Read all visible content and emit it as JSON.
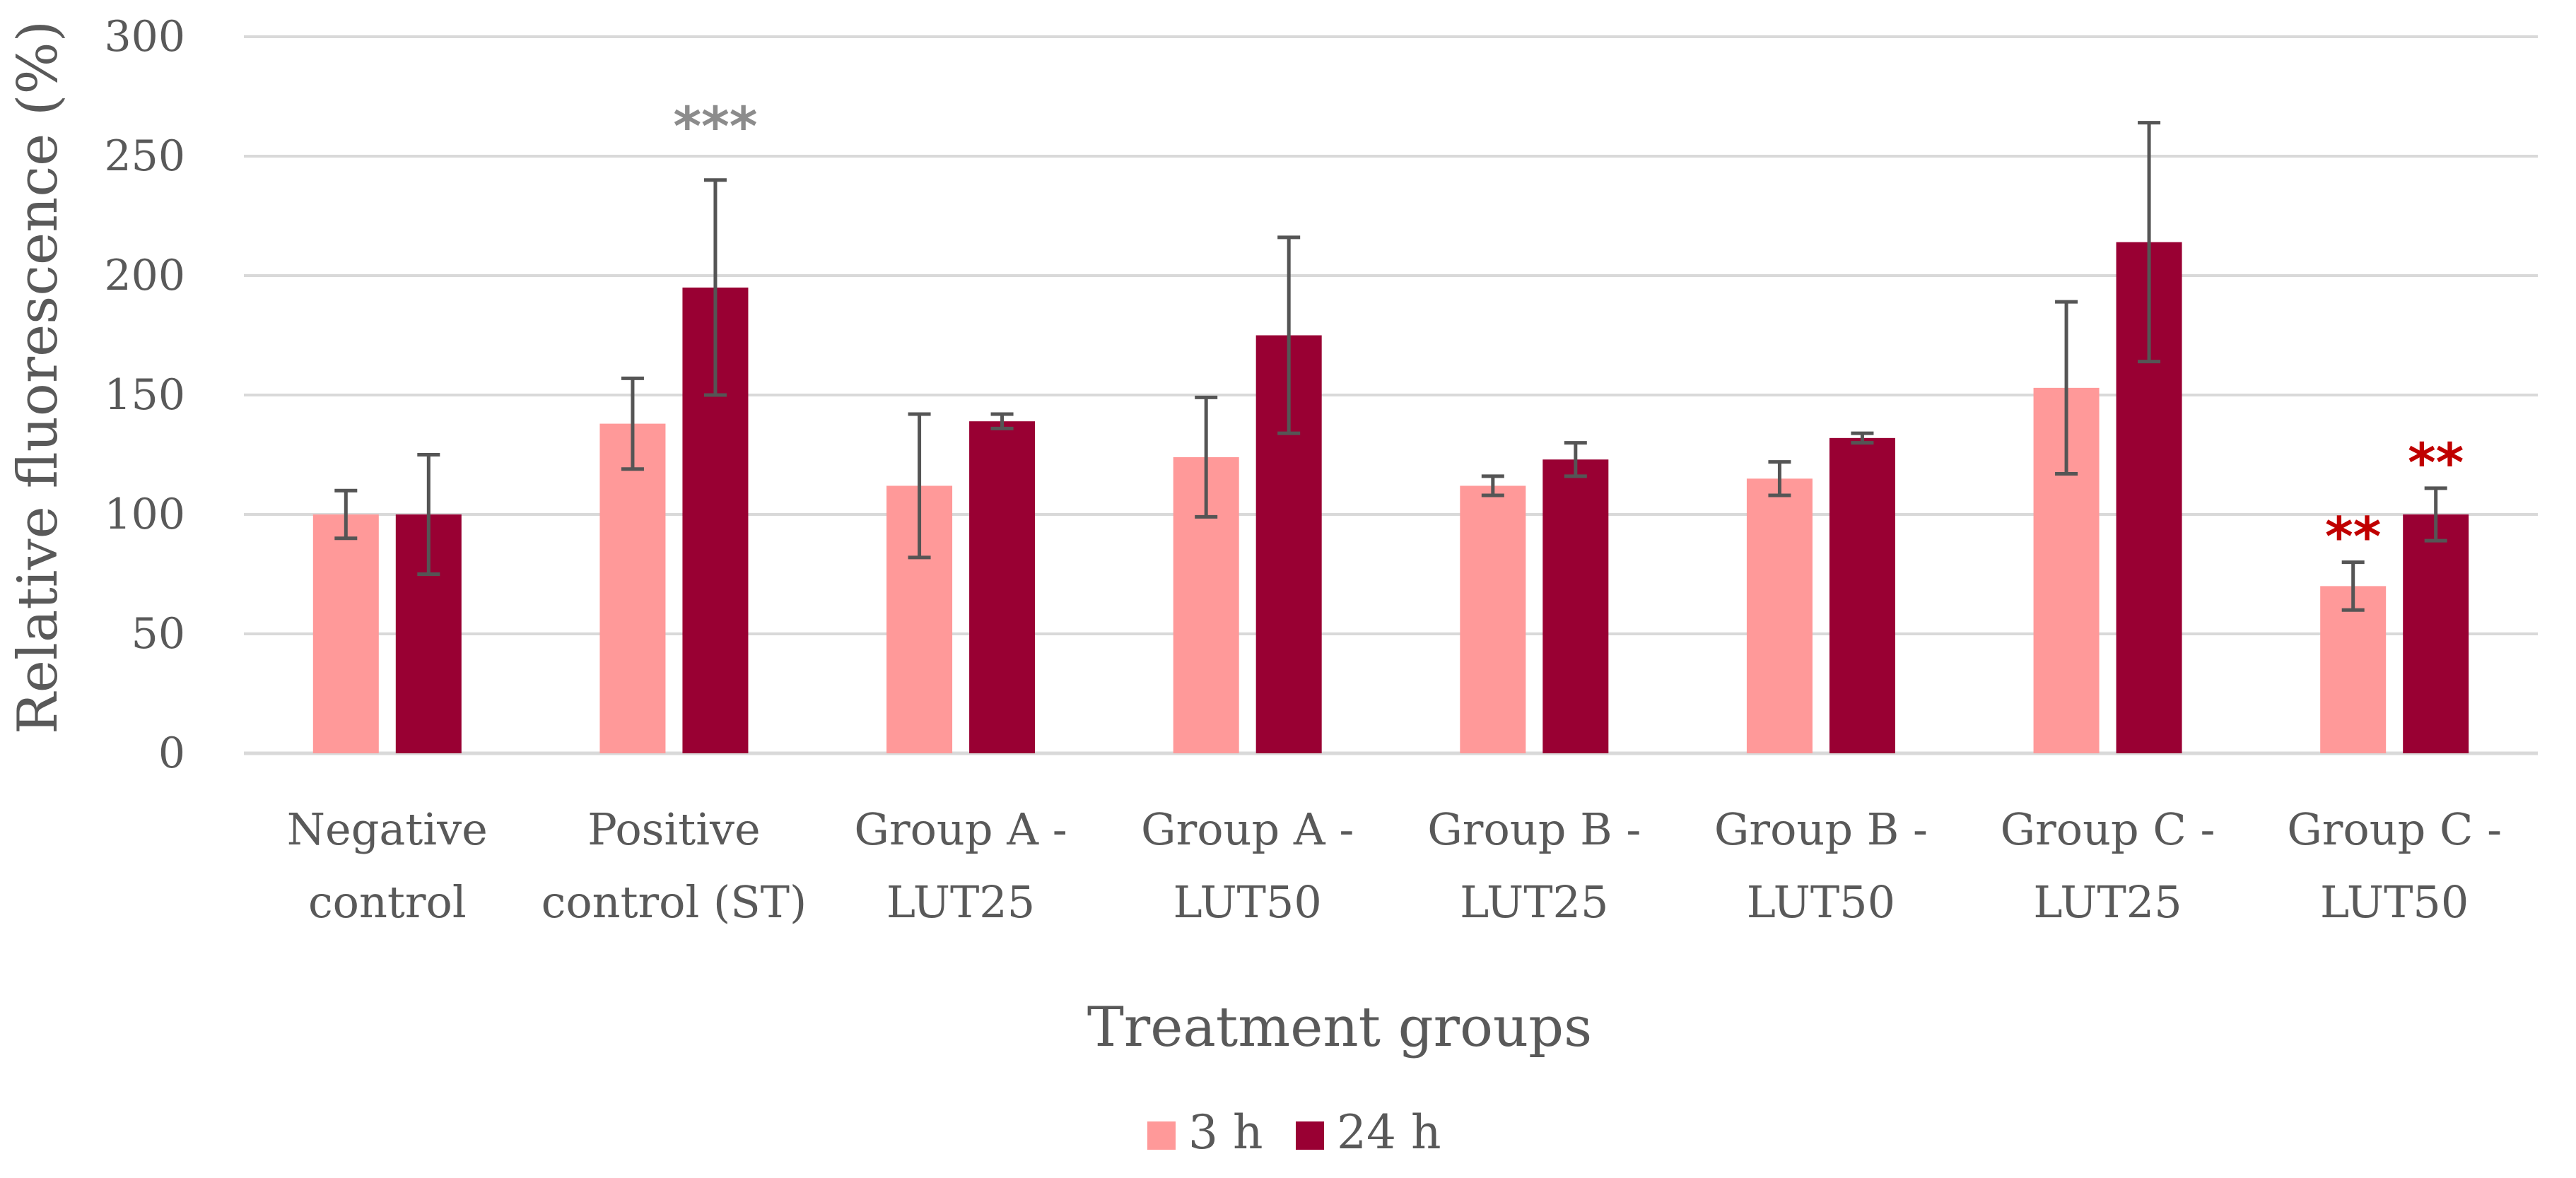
{
  "chart_data": {
    "type": "bar",
    "title": "",
    "xlabel": "Treatment groups",
    "ylabel": "Relative fluorescence (%)",
    "ylim": [
      0,
      300
    ],
    "yticks": [
      0,
      50,
      100,
      150,
      200,
      250,
      300
    ],
    "grid": true,
    "legend_position": "bottom",
    "categories": [
      [
        "Negative",
        "control"
      ],
      [
        "Positive",
        "control (ST)"
      ],
      [
        "Group A -",
        "LUT25"
      ],
      [
        "Group A -",
        "LUT50"
      ],
      [
        "Group B -",
        "LUT25"
      ],
      [
        "Group B -",
        "LUT50"
      ],
      [
        "Group C -",
        "LUT25"
      ],
      [
        "Group C -",
        "LUT50"
      ]
    ],
    "series": [
      {
        "name": "3 h",
        "color": "#ff9999",
        "values": [
          100,
          138,
          112,
          124,
          112,
          115,
          153,
          70
        ],
        "errors": [
          10,
          19,
          30,
          25,
          4,
          7,
          36,
          10
        ]
      },
      {
        "name": "24 h",
        "color": "#990033",
        "values": [
          100,
          195,
          139,
          175,
          123,
          132,
          214,
          100
        ],
        "errors": [
          25,
          45,
          3,
          41,
          7,
          2,
          50,
          11
        ]
      }
    ],
    "error_bar_color": "#555555",
    "gridline_color": "#d9d9d9",
    "annotations": [
      {
        "text": "***",
        "category_index": 1,
        "series_index": 1,
        "color": "#8c8c8c"
      },
      {
        "text": "**",
        "category_index": 7,
        "series_index": 0,
        "color": "#c00000"
      },
      {
        "text": "**",
        "category_index": 7,
        "series_index": 1,
        "color": "#c00000"
      }
    ]
  }
}
